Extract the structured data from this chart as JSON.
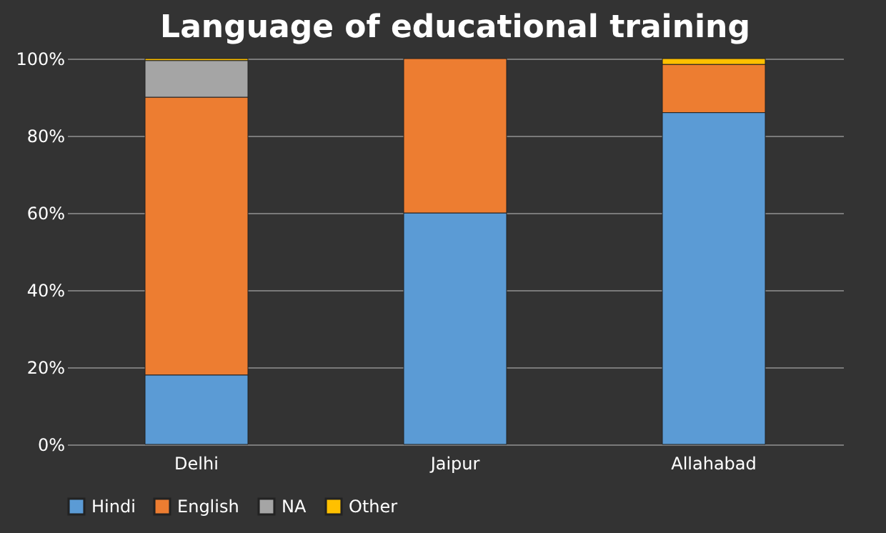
{
  "chart_data": {
    "type": "bar",
    "title": "Language of educational training",
    "categories": [
      "Delhi",
      "Jaipur",
      "Allahabad"
    ],
    "stacked": true,
    "series": [
      {
        "name": "Hindi",
        "color": "#5b9bd5",
        "values": [
          18,
          60,
          86
        ]
      },
      {
        "name": "English",
        "color": "#ed7d31",
        "values": [
          72,
          40,
          12.5
        ]
      },
      {
        "name": "NA",
        "color": "#a5a5a5",
        "values": [
          9.5,
          0,
          0
        ]
      },
      {
        "name": "Other",
        "color": "#ffc000",
        "values": [
          0.5,
          0,
          1.5
        ]
      }
    ],
    "ylim": [
      0,
      100
    ],
    "yticks": [
      {
        "value": 0,
        "label": "0%"
      },
      {
        "value": 20,
        "label": "20%"
      },
      {
        "value": 40,
        "label": "40%"
      },
      {
        "value": 60,
        "label": "60%"
      },
      {
        "value": 80,
        "label": "80%"
      },
      {
        "value": 100,
        "label": "100%"
      }
    ],
    "grid": "y",
    "legend": "bottom"
  }
}
